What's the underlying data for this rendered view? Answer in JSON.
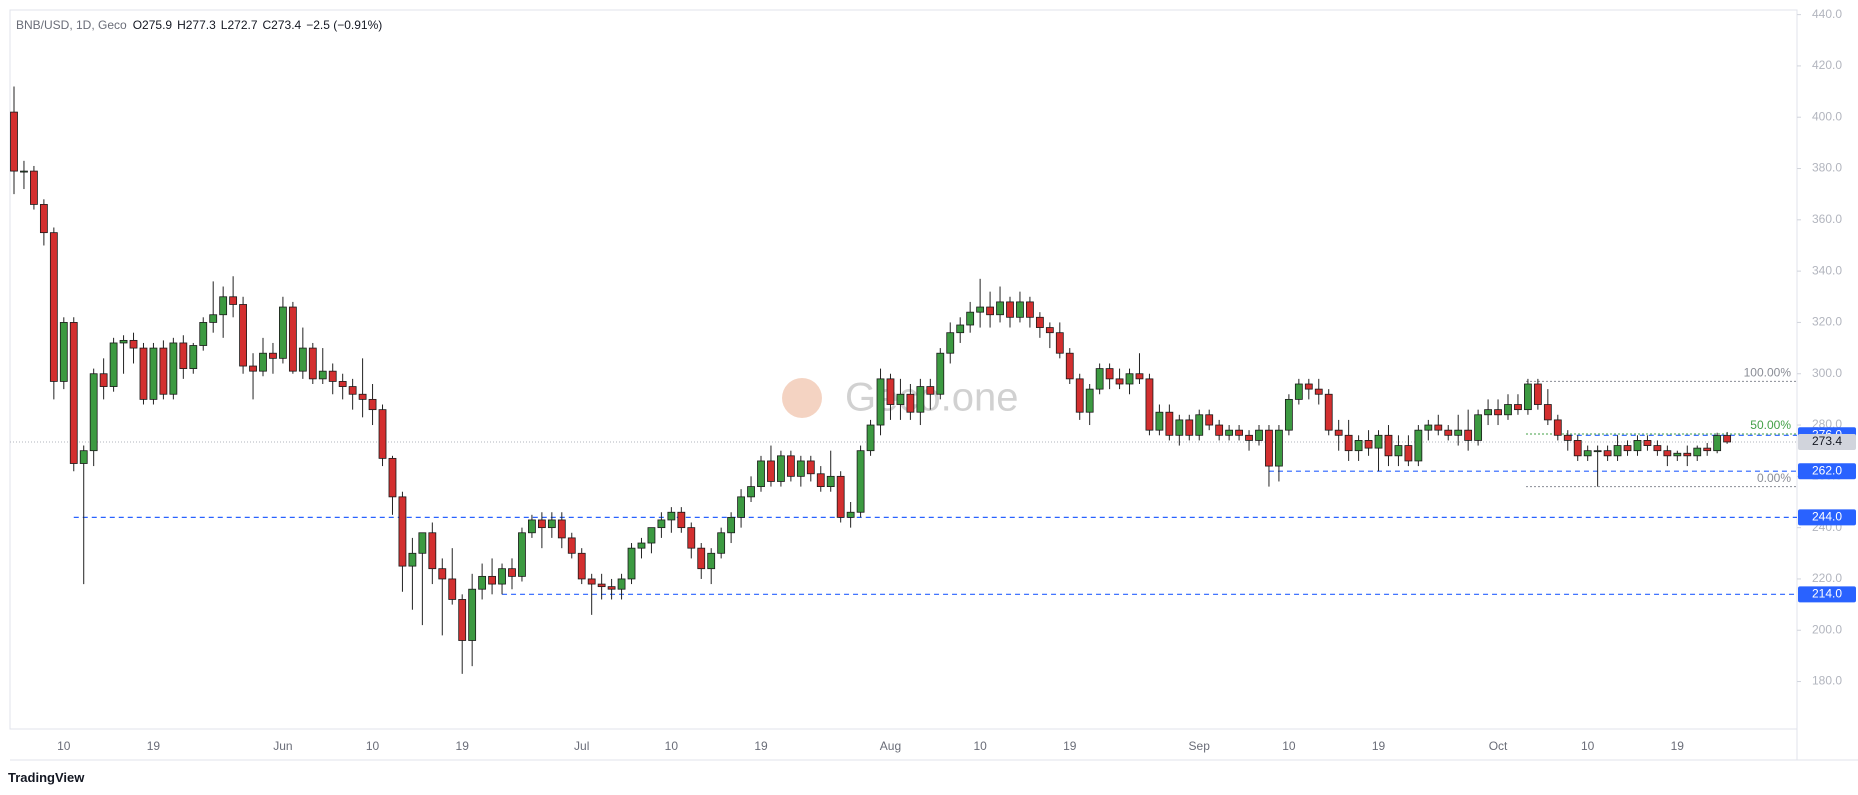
{
  "chart_data": {
    "type": "candlestick",
    "symbol": "BNB/USD, 1D, Geco",
    "ohlc_labels": [
      "O",
      "H",
      "L",
      "C"
    ],
    "change_label": "−2.5 (−0.91%)",
    "watermark": "Geco.one",
    "brand": "TradingView",
    "up_color": "#3c9a41",
    "down_color": "#d32f2f",
    "wick_color": "#222222",
    "level_color": "#2962ff",
    "ylim": [
      161.5,
      441.8
    ],
    "yticks": [
      {
        "value": 180,
        "label": "180.0"
      },
      {
        "value": 200,
        "label": "200.0"
      },
      {
        "value": 220,
        "label": "220.0"
      },
      {
        "value": 240,
        "label": "240.0"
      },
      {
        "value": 260,
        "label": "260.0"
      },
      {
        "value": 280,
        "label": "280.0"
      },
      {
        "value": 300,
        "label": "300.0"
      },
      {
        "value": 320,
        "label": "320.0"
      },
      {
        "value": 340,
        "label": "340.0"
      },
      {
        "value": 360,
        "label": "360.0"
      },
      {
        "value": 380,
        "label": "380.0"
      },
      {
        "value": 400,
        "label": "400.0"
      },
      {
        "value": 420,
        "label": "420.0"
      },
      {
        "value": 440,
        "label": "440.0"
      }
    ],
    "levels": [
      {
        "value": 276,
        "label": "276.0"
      },
      {
        "value": 262,
        "label": "262.0"
      },
      {
        "value": 244,
        "label": "244.0"
      },
      {
        "value": 214,
        "label": "214.0"
      }
    ],
    "last_price": {
      "value": 273.4,
      "label": "273.4"
    },
    "fib": [
      {
        "value": 297,
        "label": "100.00%"
      },
      {
        "value": 276.5,
        "label": "50.00%"
      },
      {
        "value": 256,
        "label": "0.00%"
      }
    ],
    "categories": [
      null,
      null,
      null,
      null,
      null,
      "10",
      null,
      null,
      null,
      null,
      null,
      null,
      null,
      null,
      "19",
      null,
      null,
      null,
      null,
      null,
      null,
      null,
      null,
      null,
      null,
      null,
      null,
      "Jun",
      null,
      null,
      null,
      null,
      null,
      null,
      null,
      null,
      "10",
      null,
      null,
      null,
      null,
      null,
      null,
      null,
      null,
      "19",
      null,
      null,
      null,
      null,
      null,
      null,
      null,
      null,
      null,
      null,
      null,
      "Jul",
      null,
      null,
      null,
      null,
      null,
      null,
      null,
      null,
      "10",
      null,
      null,
      null,
      null,
      null,
      null,
      null,
      null,
      "19",
      null,
      null,
      null,
      null,
      null,
      null,
      null,
      null,
      null,
      null,
      null,
      null,
      "Aug",
      null,
      null,
      null,
      null,
      null,
      null,
      null,
      null,
      "10",
      null,
      null,
      null,
      null,
      null,
      null,
      null,
      null,
      "19",
      null,
      null,
      null,
      null,
      null,
      null,
      null,
      null,
      null,
      null,
      null,
      null,
      "Sep",
      null,
      null,
      null,
      null,
      null,
      null,
      null,
      null,
      "10",
      null,
      null,
      null,
      null,
      null,
      null,
      null,
      null,
      "19",
      null,
      null,
      null,
      null,
      null,
      null,
      null,
      null,
      null,
      null,
      null,
      "Oct",
      null,
      null,
      null,
      null,
      null,
      null,
      null,
      null,
      "10",
      null,
      null,
      null,
      null,
      null,
      null,
      null,
      null,
      "19",
      null,
      null,
      null,
      null,
      null
    ],
    "candles": [
      [
        402,
        412,
        370,
        379
      ],
      [
        379,
        383,
        372,
        379
      ],
      [
        379,
        381,
        364,
        366
      ],
      [
        366,
        368,
        350,
        355
      ],
      [
        355,
        357,
        290,
        297
      ],
      [
        297,
        322,
        294,
        320
      ],
      [
        320,
        322,
        262,
        265
      ],
      [
        265,
        272,
        218,
        270
      ],
      [
        270,
        302,
        264,
        300
      ],
      [
        300,
        306,
        290,
        295
      ],
      [
        295,
        314,
        293,
        312
      ],
      [
        312,
        315,
        300,
        313
      ],
      [
        313,
        316,
        304,
        310
      ],
      [
        310,
        312,
        288,
        290
      ],
      [
        290,
        312,
        288,
        310
      ],
      [
        310,
        313,
        290,
        292
      ],
      [
        292,
        314,
        290,
        312
      ],
      [
        312,
        315,
        298,
        302
      ],
      [
        302,
        312,
        300,
        311
      ],
      [
        311,
        322,
        309,
        320
      ],
      [
        320,
        336,
        316,
        323
      ],
      [
        323,
        334,
        314,
        330
      ],
      [
        330,
        338,
        322,
        327
      ],
      [
        327,
        330,
        300,
        303
      ],
      [
        303,
        308,
        290,
        301
      ],
      [
        301,
        314,
        299,
        308
      ],
      [
        308,
        312,
        300,
        306
      ],
      [
        306,
        330,
        304,
        326
      ],
      [
        326,
        328,
        300,
        301
      ],
      [
        301,
        318,
        298,
        310
      ],
      [
        310,
        312,
        296,
        298
      ],
      [
        298,
        310,
        296,
        301
      ],
      [
        301,
        304,
        292,
        297
      ],
      [
        297,
        300,
        290,
        295
      ],
      [
        295,
        298,
        286,
        292
      ],
      [
        292,
        306,
        283,
        290
      ],
      [
        290,
        296,
        280,
        286
      ],
      [
        286,
        288,
        264,
        267
      ],
      [
        267,
        268,
        245,
        252
      ],
      [
        252,
        254,
        215,
        225
      ],
      [
        225,
        236,
        208,
        230
      ],
      [
        230,
        238,
        202,
        238
      ],
      [
        238,
        242,
        218,
        224
      ],
      [
        224,
        228,
        198,
        220
      ],
      [
        220,
        232,
        210,
        212
      ],
      [
        212,
        214,
        183,
        196
      ],
      [
        196,
        222,
        186,
        216
      ],
      [
        216,
        226,
        212,
        221
      ],
      [
        221,
        228,
        214,
        218
      ],
      [
        218,
        226,
        214,
        224
      ],
      [
        224,
        228,
        216,
        221
      ],
      [
        221,
        240,
        219,
        238
      ],
      [
        238,
        245,
        236,
        243
      ],
      [
        243,
        246,
        232,
        240
      ],
      [
        240,
        246,
        236,
        243
      ],
      [
        243,
        246,
        232,
        236
      ],
      [
        236,
        238,
        228,
        230
      ],
      [
        230,
        232,
        218,
        220
      ],
      [
        220,
        222,
        206,
        218
      ],
      [
        218,
        222,
        212,
        217
      ],
      [
        217,
        220,
        212,
        216
      ],
      [
        216,
        222,
        212,
        220
      ],
      [
        220,
        234,
        218,
        232
      ],
      [
        232,
        236,
        228,
        234
      ],
      [
        234,
        240,
        230,
        240
      ],
      [
        240,
        246,
        236,
        243
      ],
      [
        243,
        248,
        238,
        246
      ],
      [
        246,
        248,
        238,
        240
      ],
      [
        240,
        242,
        228,
        232
      ],
      [
        232,
        234,
        220,
        224
      ],
      [
        224,
        232,
        218,
        230
      ],
      [
        230,
        240,
        228,
        238
      ],
      [
        238,
        246,
        234,
        244
      ],
      [
        244,
        255,
        240,
        252
      ],
      [
        252,
        260,
        250,
        256
      ],
      [
        256,
        268,
        254,
        266
      ],
      [
        266,
        272,
        256,
        258
      ],
      [
        258,
        270,
        256,
        268
      ],
      [
        268,
        270,
        258,
        260
      ],
      [
        260,
        268,
        256,
        266
      ],
      [
        266,
        268,
        258,
        261
      ],
      [
        261,
        264,
        254,
        256
      ],
      [
        256,
        270,
        254,
        260
      ],
      [
        260,
        262,
        242,
        244
      ],
      [
        244,
        250,
        240,
        246
      ],
      [
        246,
        272,
        244,
        270
      ],
      [
        270,
        282,
        268,
        280
      ],
      [
        280,
        302,
        276,
        298
      ],
      [
        298,
        300,
        282,
        288
      ],
      [
        288,
        298,
        282,
        292
      ],
      [
        292,
        296,
        282,
        285
      ],
      [
        285,
        298,
        280,
        295
      ],
      [
        295,
        298,
        286,
        292
      ],
      [
        292,
        310,
        290,
        308
      ],
      [
        308,
        320,
        304,
        316
      ],
      [
        316,
        322,
        312,
        319
      ],
      [
        319,
        328,
        316,
        324
      ],
      [
        324,
        337,
        318,
        326
      ],
      [
        326,
        332,
        318,
        323
      ],
      [
        323,
        334,
        320,
        328
      ],
      [
        328,
        330,
        318,
        322
      ],
      [
        322,
        332,
        320,
        328
      ],
      [
        328,
        330,
        318,
        322
      ],
      [
        322,
        324,
        314,
        318
      ],
      [
        318,
        320,
        310,
        316
      ],
      [
        316,
        320,
        306,
        308
      ],
      [
        308,
        310,
        296,
        298
      ],
      [
        298,
        300,
        282,
        285
      ],
      [
        285,
        296,
        280,
        294
      ],
      [
        294,
        304,
        292,
        302
      ],
      [
        302,
        304,
        294,
        298
      ],
      [
        298,
        302,
        294,
        296
      ],
      [
        296,
        302,
        292,
        300
      ],
      [
        300,
        308,
        296,
        298
      ],
      [
        298,
        300,
        276,
        278
      ],
      [
        278,
        288,
        276,
        285
      ],
      [
        285,
        288,
        274,
        276
      ],
      [
        276,
        284,
        272,
        282
      ],
      [
        282,
        284,
        274,
        276
      ],
      [
        276,
        286,
        274,
        284
      ],
      [
        284,
        286,
        278,
        280
      ],
      [
        280,
        282,
        274,
        276
      ],
      [
        276,
        280,
        274,
        278
      ],
      [
        278,
        280,
        274,
        276
      ],
      [
        276,
        278,
        270,
        274
      ],
      [
        274,
        280,
        272,
        278
      ],
      [
        278,
        280,
        256,
        264
      ],
      [
        264,
        280,
        258,
        278
      ],
      [
        278,
        292,
        276,
        290
      ],
      [
        290,
        298,
        288,
        296
      ],
      [
        296,
        298,
        290,
        294
      ],
      [
        294,
        298,
        288,
        292
      ],
      [
        292,
        294,
        276,
        278
      ],
      [
        278,
        282,
        270,
        276
      ],
      [
        276,
        282,
        266,
        270
      ],
      [
        270,
        276,
        266,
        274
      ],
      [
        274,
        278,
        268,
        271
      ],
      [
        271,
        278,
        262,
        276
      ],
      [
        276,
        280,
        264,
        268
      ],
      [
        268,
        276,
        264,
        272
      ],
      [
        272,
        276,
        264,
        266
      ],
      [
        266,
        280,
        264,
        278
      ],
      [
        278,
        282,
        274,
        280
      ],
      [
        280,
        284,
        276,
        278
      ],
      [
        278,
        280,
        274,
        276
      ],
      [
        276,
        284,
        272,
        278
      ],
      [
        278,
        286,
        270,
        274
      ],
      [
        274,
        286,
        272,
        284
      ],
      [
        284,
        290,
        280,
        286
      ],
      [
        286,
        290,
        280,
        284
      ],
      [
        284,
        292,
        282,
        288
      ],
      [
        288,
        292,
        284,
        286
      ],
      [
        286,
        298,
        284,
        296
      ],
      [
        296,
        298,
        286,
        288
      ],
      [
        288,
        294,
        280,
        282
      ],
      [
        282,
        284,
        274,
        276
      ],
      [
        276,
        278,
        270,
        274
      ],
      [
        274,
        276,
        266,
        268
      ],
      [
        268,
        272,
        266,
        270
      ],
      [
        270,
        272,
        256,
        270
      ],
      [
        270,
        272,
        266,
        268
      ],
      [
        268,
        276,
        266,
        272
      ],
      [
        272,
        274,
        268,
        270
      ],
      [
        270,
        276,
        268,
        274
      ],
      [
        274,
        276,
        270,
        272
      ],
      [
        272,
        274,
        268,
        270
      ],
      [
        270,
        272,
        264,
        268
      ],
      [
        268,
        270,
        266,
        269
      ],
      [
        269,
        272,
        264,
        268
      ],
      [
        268,
        272,
        266,
        271
      ],
      [
        271,
        273,
        268,
        270
      ],
      [
        270,
        277,
        269,
        275.9
      ],
      [
        275.9,
        277.3,
        272.7,
        273.4
      ]
    ]
  }
}
